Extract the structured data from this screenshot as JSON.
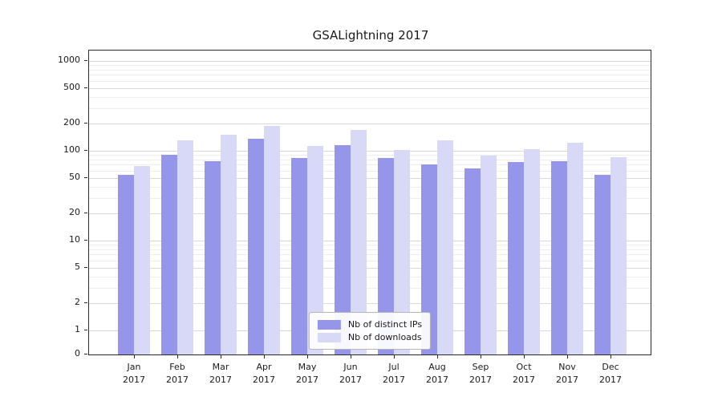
{
  "chart_data": {
    "type": "bar",
    "title": "GSALightning 2017",
    "categories": [
      "Jan 2017",
      "Feb 2017",
      "Mar 2017",
      "Apr 2017",
      "May 2017",
      "Jun 2017",
      "Jul 2017",
      "Aug 2017",
      "Sep 2017",
      "Oct 2017",
      "Nov 2017",
      "Dec 2017"
    ],
    "series": [
      {
        "name": "Nb of distinct IPs",
        "color": "#9596ea",
        "values": [
          54,
          90,
          77,
          135,
          83,
          115,
          83,
          70,
          64,
          75,
          77,
          54
        ]
      },
      {
        "name": "Nb of downloads",
        "color": "#d8d8f7",
        "values": [
          68,
          130,
          150,
          190,
          112,
          170,
          103,
          130,
          88,
          104,
          123,
          84
        ]
      }
    ],
    "yscale": "symlog",
    "yticks": [
      0,
      1,
      2,
      5,
      10,
      20,
      50,
      100,
      200,
      500,
      1000
    ],
    "ylim": [
      0,
      1300
    ],
    "xlabel": "",
    "ylabel": "",
    "grid": true,
    "legend_position": "lower center"
  }
}
